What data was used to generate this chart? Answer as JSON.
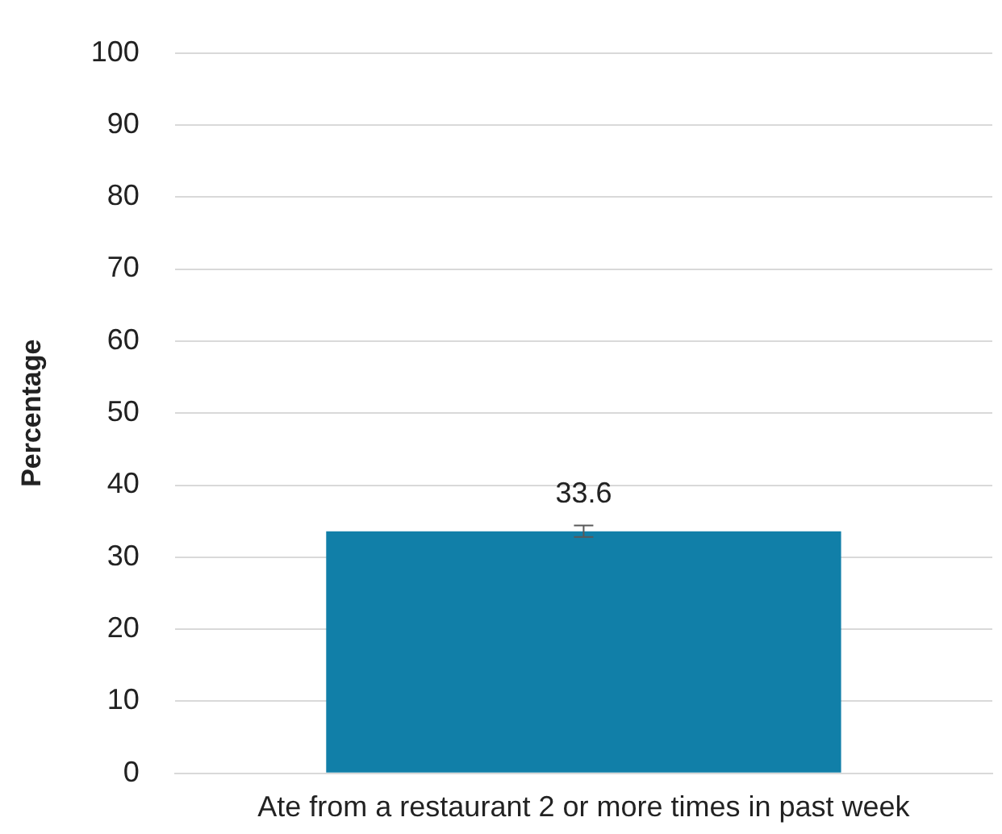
{
  "chart_data": {
    "type": "bar",
    "ylabel": "Percentage",
    "categories": [
      "Ate from a restaurant 2 or more times in past week"
    ],
    "values": [
      33.6
    ],
    "errors": [
      0.8
    ],
    "color": "#117fa8",
    "ylim": [
      0,
      100
    ],
    "yticks": [
      0,
      10,
      20,
      30,
      40,
      50,
      60,
      70,
      80,
      90,
      100
    ],
    "grid": "y",
    "data_labels": true,
    "legend": false
  }
}
